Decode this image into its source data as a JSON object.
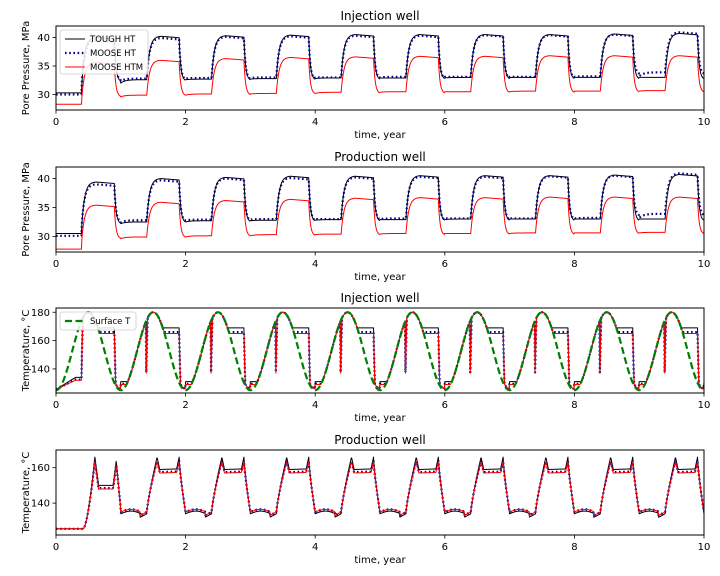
{
  "chart_data": [
    {
      "type": "line",
      "title": "Injection well",
      "xlabel": "time, year",
      "ylabel": "Pore Pressure, MPa",
      "xlim": [
        0,
        10
      ],
      "ylim": [
        27.3,
        42.0
      ],
      "xticks": [
        0,
        2,
        4,
        6,
        8,
        10
      ],
      "yticks": [
        30,
        35,
        40
      ],
      "legend": "top-left",
      "series": [
        {
          "name": "TOUGH HT",
          "color": "#000000",
          "style": "solid",
          "model": "pressure",
          "base": 30.3,
          "high": 40.2,
          "low": 32.7,
          "cycle_high": [
            40.0,
            40.2,
            40.3,
            40.4,
            40.5,
            40.5,
            40.5,
            40.5,
            40.6,
            40.7
          ],
          "cycle_low": [
            32.0,
            32.6,
            32.7,
            32.8,
            32.9,
            32.9,
            33.0,
            33.0,
            33.0,
            33.0
          ]
        },
        {
          "name": "MOOSE HT",
          "color": "#00008b",
          "style": "dotted",
          "model": "pressure",
          "base": 30.0,
          "high": 39.9,
          "low": 32.9,
          "cycle_high": [
            39.5,
            39.9,
            40.1,
            40.2,
            40.3,
            40.3,
            40.4,
            40.4,
            40.5,
            40.9
          ],
          "cycle_low": [
            32.4,
            32.8,
            32.9,
            33.0,
            33.0,
            33.1,
            33.1,
            33.1,
            33.2,
            33.9
          ]
        },
        {
          "name": "MOOSE HTM",
          "color": "#ff0000",
          "style": "solid",
          "model": "pressure",
          "base": 28.3,
          "high": 36.0,
          "low": 30.0,
          "cycle_high": [
            35.6,
            36.0,
            36.3,
            36.5,
            36.6,
            36.7,
            36.7,
            36.8,
            36.8,
            36.8
          ],
          "cycle_low": [
            29.6,
            29.9,
            30.1,
            30.2,
            30.4,
            30.5,
            30.5,
            30.6,
            30.6,
            30.7
          ]
        }
      ]
    },
    {
      "type": "line",
      "title": "Production well",
      "xlabel": "time, year",
      "ylabel": "Pore Pressure, MPa",
      "xlim": [
        0,
        10
      ],
      "ylim": [
        27.3,
        42.0
      ],
      "xticks": [
        0,
        2,
        4,
        6,
        8,
        10
      ],
      "yticks": [
        30,
        35,
        40
      ],
      "series": [
        {
          "color": "#000000",
          "style": "solid",
          "model": "pressure",
          "base": 30.5,
          "high": 40.2,
          "low": 32.7,
          "cycle_high": [
            39.4,
            40.0,
            40.2,
            40.4,
            40.4,
            40.5,
            40.5,
            40.5,
            40.6,
            40.7
          ],
          "cycle_low": [
            32.2,
            32.5,
            32.7,
            32.8,
            32.9,
            32.9,
            33.0,
            33.0,
            33.0,
            33.0
          ]
        },
        {
          "color": "#00008b",
          "style": "dotted",
          "model": "pressure",
          "base": 30.1,
          "high": 39.9,
          "low": 32.9,
          "cycle_high": [
            39.0,
            39.7,
            40.0,
            40.1,
            40.2,
            40.3,
            40.3,
            40.4,
            40.5,
            40.9
          ],
          "cycle_low": [
            32.4,
            32.8,
            32.9,
            33.0,
            33.0,
            33.1,
            33.1,
            33.1,
            33.2,
            33.9
          ]
        },
        {
          "color": "#ff0000",
          "style": "solid",
          "model": "pressure",
          "base": 27.8,
          "high": 36.0,
          "low": 30.0,
          "cycle_high": [
            35.4,
            35.9,
            36.2,
            36.4,
            36.6,
            36.7,
            36.7,
            36.8,
            36.8,
            36.8
          ],
          "cycle_low": [
            29.6,
            29.9,
            30.1,
            30.3,
            30.4,
            30.5,
            30.5,
            30.6,
            30.6,
            30.7
          ]
        }
      ]
    },
    {
      "type": "line",
      "title": "Injection well",
      "xlabel": "time, year",
      "ylabel": "Temperature, °C",
      "xlim": [
        0,
        10
      ],
      "ylim": [
        123,
        183
      ],
      "xticks": [
        0,
        2,
        4,
        6,
        8,
        10
      ],
      "yticks": [
        140,
        160,
        180
      ],
      "legend": "top-left",
      "series": [
        {
          "color": "#000000",
          "style": "solid",
          "model": "inj_temp",
          "start": 125.5,
          "step_level": 172.0,
          "late_level": 169.0,
          "low_level": 134.0
        },
        {
          "color": "#00008b",
          "style": "dotted",
          "model": "inj_temp",
          "start": 125.5,
          "step_level": 168.0,
          "late_level": 166.0,
          "low_level": 132.5
        },
        {
          "color": "#ff0000",
          "style": "solid",
          "model": "inj_temp",
          "start": 125.5,
          "step_level": 167.0,
          "late_level": 165.0,
          "low_level": 132.0
        },
        {
          "name": "Surface T",
          "color": "#008000",
          "style": "dashed",
          "model": "sine",
          "mean": 152.5,
          "amplitude": 27.5,
          "period": 1.0,
          "peak_t": 0.5
        }
      ]
    },
    {
      "type": "line",
      "title": "Production well",
      "xlabel": "time, year",
      "ylabel": "Temperature, °C",
      "xlim": [
        0,
        10
      ],
      "ylim": [
        122,
        170
      ],
      "xticks": [
        0,
        2,
        4,
        6,
        8,
        10
      ],
      "yticks": [
        140,
        160
      ],
      "series": [
        {
          "color": "#000000",
          "style": "solid",
          "model": "prod_temp",
          "start": 125.5,
          "peak": 166.0,
          "plateau": 159.0,
          "low": 134.0
        },
        {
          "color": "#00008b",
          "style": "dotted",
          "model": "prod_temp",
          "start": 125.5,
          "peak": 164.0,
          "plateau": 157.5,
          "low": 135.0
        },
        {
          "color": "#ff0000",
          "style": "solid",
          "model": "prod_temp",
          "start": 125.5,
          "peak": 163.5,
          "plateau": 157.0,
          "low": 135.0
        }
      ]
    }
  ]
}
